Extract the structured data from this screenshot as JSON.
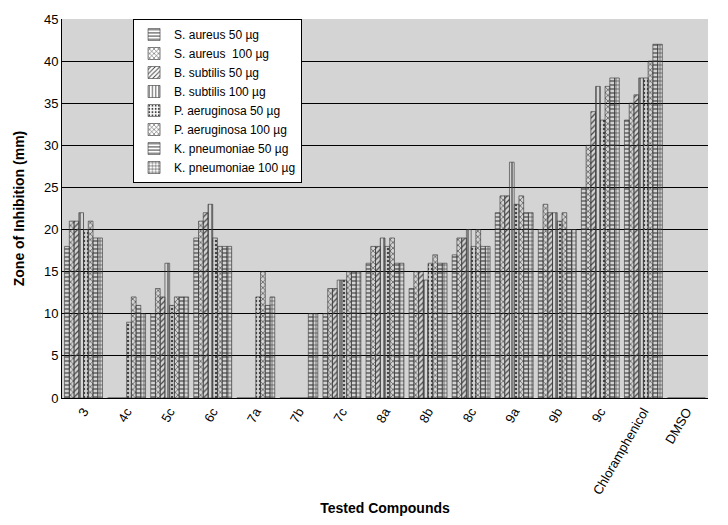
{
  "chart_data": {
    "type": "bar",
    "x_label": "Tested Compounds",
    "y_label": "Zone of Inhibition (mm)",
    "categories": [
      "3",
      "4c",
      "5c",
      "6c",
      "7a",
      "7b",
      "7c",
      "8a",
      "8b",
      "8c",
      "9a",
      "9b",
      "9c",
      "Chloramphenicol",
      "DMSO"
    ],
    "series": [
      {
        "name": "S. aureus 50 µg",
        "color": "#e6e6e6",
        "values": [
          18,
          0,
          10,
          19,
          0,
          0,
          10,
          16,
          13,
          17,
          22,
          20,
          25,
          33,
          0
        ]
      },
      {
        "name": "S. aureus  100 µg",
        "color": "#d0d0d0",
        "values": [
          21,
          0,
          13,
          21,
          0,
          0,
          13,
          18,
          15,
          19,
          24,
          23,
          30,
          35,
          0
        ]
      },
      {
        "name": "B. subtilis 50 µg",
        "color": "#dcdcdc",
        "values": [
          21,
          0,
          12,
          22,
          0,
          0,
          13,
          18,
          15,
          19,
          24,
          22,
          34,
          36,
          0
        ]
      },
      {
        "name": "B. subtilis 100 µg",
        "color": "#bdbdbd",
        "values": [
          22,
          0,
          16,
          23,
          0,
          0,
          14,
          19,
          14,
          20,
          28,
          22,
          37,
          38,
          0
        ]
      },
      {
        "name": "P. aeruginosa 50 µg",
        "color": "#eeeeee",
        "values": [
          20,
          9,
          11,
          19,
          12,
          0,
          14,
          18,
          16,
          18,
          23,
          21,
          33,
          38,
          0
        ]
      },
      {
        "name": "P. aeruginosa 100 µg",
        "color": "#d6d6d6",
        "values": [
          21,
          12,
          12,
          18,
          15,
          0,
          15,
          19,
          17,
          20,
          24,
          22,
          37,
          40,
          0
        ]
      },
      {
        "name": "K. pneumoniae 50 µg",
        "color": "#c8c8c8",
        "values": [
          19,
          11,
          12,
          18,
          11,
          10,
          15,
          16,
          16,
          18,
          22,
          20,
          38,
          42,
          0
        ]
      },
      {
        "name": "K. pneumoniae 100 µg",
        "color": "#e0e0e0",
        "values": [
          19,
          10,
          12,
          18,
          12,
          10,
          15,
          16,
          16,
          18,
          22,
          20,
          38,
          42,
          0
        ]
      }
    ],
    "ylim": [
      0,
      45
    ],
    "yticks": [
      0,
      5,
      10,
      15,
      20,
      25,
      30,
      35,
      40,
      45
    ],
    "grid": true,
    "legend": "top left"
  }
}
